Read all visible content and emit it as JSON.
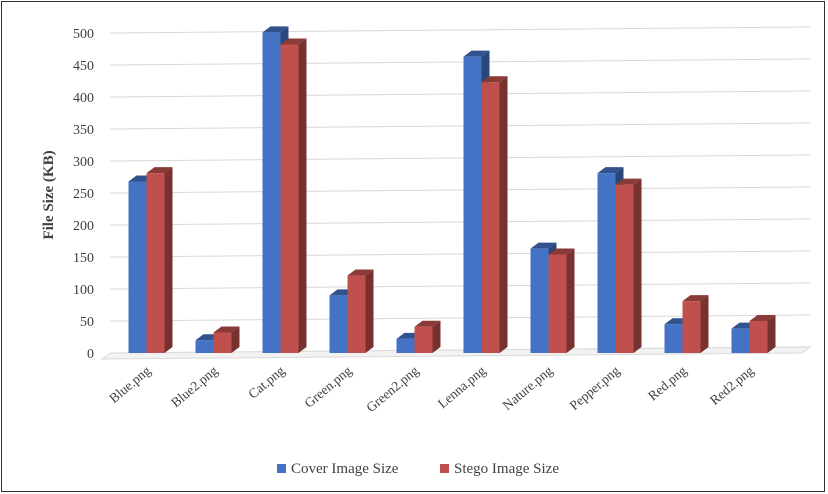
{
  "chart_data": {
    "type": "bar",
    "style": "3d-clustered-column",
    "title": "",
    "xlabel": "",
    "ylabel": "File Size (KB)",
    "ylim": [
      0,
      500
    ],
    "yticks": [
      "0",
      "50",
      "100",
      "150",
      "200",
      "250",
      "300",
      "350",
      "400",
      "450",
      "500"
    ],
    "categories": [
      "Blue.png",
      "Blue2.png",
      "Cat.png",
      "Green.png",
      "Green2.png",
      "Lenna.png",
      "Nature.png",
      "Pepper.png",
      "Red.png",
      "Red2.png"
    ],
    "series": [
      {
        "name": "Cover Image Size",
        "color": "#4472C4",
        "values": [
          268,
          20,
          501,
          90,
          22,
          463,
          163,
          281,
          45,
          38
        ]
      },
      {
        "name": "Stego Image Size",
        "color": "#C0504D",
        "values": [
          281,
          32,
          482,
          121,
          41,
          423,
          154,
          263,
          81,
          50
        ]
      }
    ],
    "grid": true,
    "legend_position": "bottom"
  }
}
